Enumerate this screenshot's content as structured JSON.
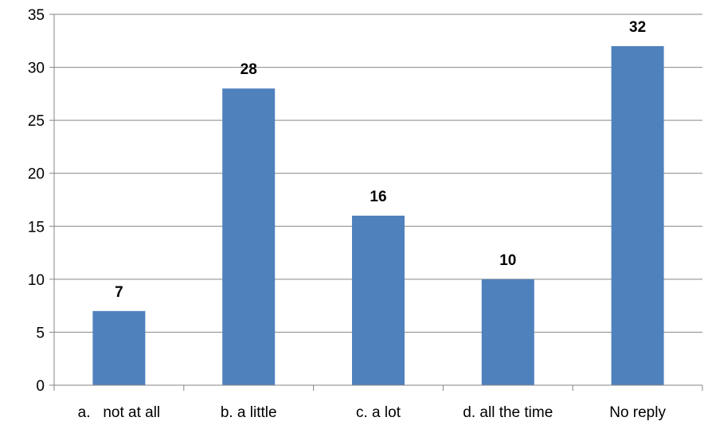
{
  "chart_data": {
    "type": "bar",
    "title": "",
    "xlabel": "",
    "ylabel": "",
    "categories": [
      "a.   not at all",
      "b. a little",
      "c. a lot",
      "d. all the time",
      "No reply"
    ],
    "values": [
      7,
      28,
      16,
      10,
      32
    ],
    "data_labels": [
      "7",
      "28",
      "16",
      "10",
      "32"
    ],
    "ylim": [
      0,
      35
    ],
    "yticks": [
      0,
      5,
      10,
      15,
      20,
      25,
      30,
      35
    ],
    "grid": true,
    "legend": "none",
    "bar_color": "#4f81bd",
    "gridline_color": "#868686"
  }
}
